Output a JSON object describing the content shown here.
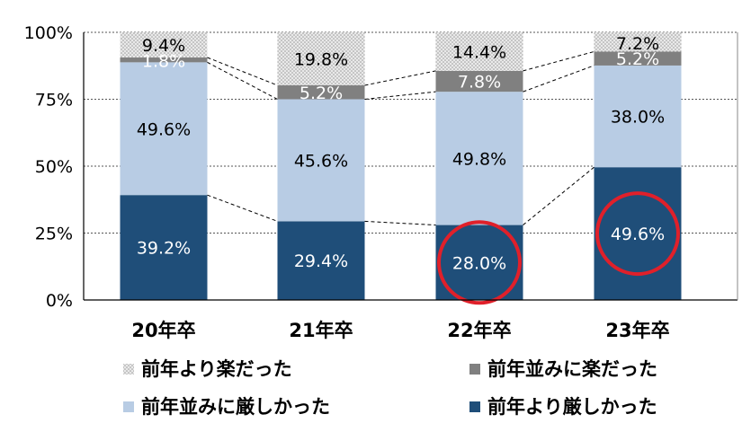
{
  "chart_data": {
    "type": "bar",
    "stacked": true,
    "categories": [
      "20年卒",
      "21年卒",
      "22年卒",
      "23年卒"
    ],
    "ylim": [
      0,
      100
    ],
    "yticks": [
      {
        "value": 0,
        "label": "0%"
      },
      {
        "value": 25,
        "label": "25%"
      },
      {
        "value": 50,
        "label": "50%"
      },
      {
        "value": 75,
        "label": "75%"
      },
      {
        "value": 100,
        "label": "100%"
      }
    ],
    "series": [
      {
        "name": "前年より厳しかった",
        "color": "#1F4E79",
        "pattern": "solid",
        "label_color": "#ffffff",
        "values": [
          39.2,
          29.4,
          28.0,
          49.6
        ]
      },
      {
        "name": "前年並みに厳しかった",
        "color": "#B8CCE4",
        "pattern": "solid",
        "label_color": "#000000",
        "values": [
          49.6,
          45.6,
          49.8,
          38.0
        ]
      },
      {
        "name": "前年並みに楽だった",
        "color": "#808080",
        "pattern": "solid",
        "label_color": "#ffffff",
        "values": [
          1.8,
          5.2,
          7.8,
          5.2
        ]
      },
      {
        "name": "前年より楽だった",
        "color": "#E6E6E6",
        "pattern": "dots",
        "label_color": "#000000",
        "values": [
          9.4,
          19.8,
          14.4,
          7.2
        ]
      }
    ],
    "data_labels": [
      [
        "39.2%",
        "29.4%",
        "28.0%",
        "49.6%"
      ],
      [
        "49.6%",
        "45.6%",
        "49.8%",
        "38.0%"
      ],
      [
        "1.8%",
        "5.2%",
        "7.8%",
        "5.2%"
      ],
      [
        "9.4%",
        "19.8%",
        "14.4%",
        "7.2%"
      ]
    ],
    "highlights": [
      {
        "category_index": 2,
        "series_index": 0,
        "color": "#E0202A"
      },
      {
        "category_index": 3,
        "series_index": 0,
        "color": "#E0202A"
      }
    ],
    "grid": true,
    "series_connector_lines": true,
    "legend": {
      "placement": "bottom",
      "order": [
        "前年より楽だった",
        "前年並みに楽だった",
        "前年並みに厳しかった",
        "前年より厳しかった"
      ]
    }
  }
}
